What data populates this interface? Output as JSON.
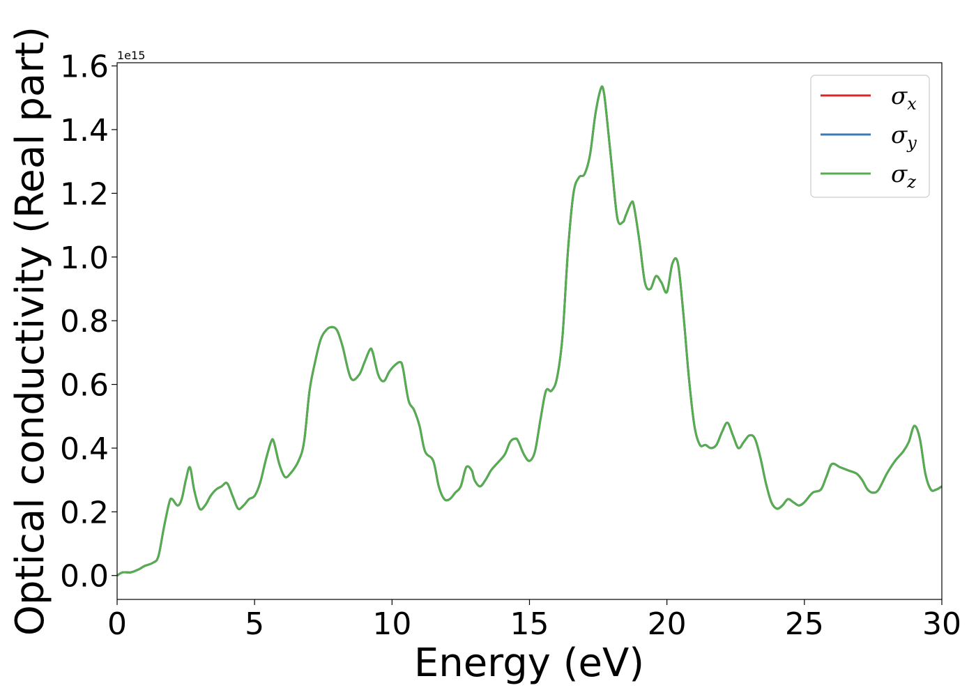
{
  "chart_data": {
    "type": "line",
    "xlabel": "Energy (eV)",
    "ylabel": "Optical conductivity (Real part)",
    "y_offset_label": "1e15",
    "y_scale": 1000000000000000.0,
    "xlim": [
      0,
      30
    ],
    "ylim": [
      -0.075,
      1.61
    ],
    "xticks": [
      0,
      5,
      10,
      15,
      20,
      25,
      30
    ],
    "yticks": [
      0.0,
      0.2,
      0.4,
      0.6,
      0.8,
      1.0,
      1.2,
      1.4,
      1.6
    ],
    "grid": false,
    "legend_position": "top-right",
    "colors": {
      "sigma_x": "#d62728",
      "sigma_y": "#3a7ab5",
      "sigma_z": "#55ad4f"
    },
    "x": [
      0,
      0.2,
      0.5,
      0.8,
      1.0,
      1.3,
      1.5,
      1.7,
      1.9,
      2.0,
      2.2,
      2.35,
      2.5,
      2.65,
      2.8,
      3.0,
      3.2,
      3.4,
      3.6,
      3.8,
      4.0,
      4.2,
      4.4,
      4.6,
      4.8,
      5.0,
      5.2,
      5.4,
      5.6,
      5.7,
      5.9,
      6.1,
      6.3,
      6.6,
      6.8,
      7.0,
      7.2,
      7.4,
      7.6,
      7.8,
      8.0,
      8.2,
      8.5,
      8.8,
      9.0,
      9.2,
      9.3,
      9.5,
      9.7,
      9.9,
      10.1,
      10.3,
      10.4,
      10.6,
      10.8,
      11.0,
      11.2,
      11.5,
      11.7,
      11.9,
      12.1,
      12.3,
      12.5,
      12.7,
      12.9,
      13.0,
      13.2,
      13.4,
      13.6,
      13.8,
      14.1,
      14.3,
      14.5,
      14.6,
      14.8,
      15.0,
      15.2,
      15.4,
      15.6,
      15.8,
      16.0,
      16.2,
      16.4,
      16.6,
      16.8,
      17.0,
      17.2,
      17.4,
      17.6,
      17.7,
      17.8,
      18.0,
      18.2,
      18.4,
      18.5,
      18.7,
      18.8,
      19.0,
      19.2,
      19.4,
      19.6,
      19.8,
      20.0,
      20.2,
      20.4,
      20.6,
      20.8,
      21.0,
      21.2,
      21.4,
      21.6,
      21.8,
      22.0,
      22.2,
      22.4,
      22.6,
      22.8,
      23.0,
      23.2,
      23.4,
      23.6,
      23.8,
      24.0,
      24.2,
      24.4,
      24.6,
      24.8,
      25.0,
      25.3,
      25.6,
      25.8,
      26.0,
      26.3,
      26.6,
      26.9,
      27.1,
      27.3,
      27.5,
      27.7,
      28.0,
      28.3,
      28.6,
      28.8,
      29.0,
      29.2,
      29.4,
      29.6,
      29.8,
      30.0
    ],
    "series": [
      {
        "name": "σx",
        "values": [
          0.0,
          0.01,
          0.01,
          0.02,
          0.03,
          0.04,
          0.06,
          0.15,
          0.23,
          0.24,
          0.22,
          0.24,
          0.3,
          0.34,
          0.27,
          0.21,
          0.22,
          0.25,
          0.27,
          0.28,
          0.29,
          0.25,
          0.21,
          0.22,
          0.24,
          0.25,
          0.29,
          0.36,
          0.42,
          0.42,
          0.35,
          0.31,
          0.32,
          0.36,
          0.42,
          0.58,
          0.67,
          0.74,
          0.77,
          0.78,
          0.77,
          0.72,
          0.62,
          0.63,
          0.67,
          0.71,
          0.7,
          0.63,
          0.61,
          0.64,
          0.66,
          0.67,
          0.65,
          0.55,
          0.52,
          0.47,
          0.39,
          0.36,
          0.28,
          0.24,
          0.24,
          0.26,
          0.28,
          0.34,
          0.33,
          0.3,
          0.28,
          0.3,
          0.33,
          0.35,
          0.38,
          0.42,
          0.43,
          0.42,
          0.38,
          0.36,
          0.39,
          0.49,
          0.58,
          0.58,
          0.62,
          0.75,
          1.02,
          1.2,
          1.25,
          1.26,
          1.32,
          1.45,
          1.53,
          1.52,
          1.45,
          1.28,
          1.12,
          1.11,
          1.13,
          1.17,
          1.16,
          1.05,
          0.92,
          0.9,
          0.94,
          0.92,
          0.89,
          0.98,
          0.98,
          0.82,
          0.62,
          0.47,
          0.41,
          0.41,
          0.4,
          0.41,
          0.45,
          0.48,
          0.44,
          0.4,
          0.42,
          0.44,
          0.43,
          0.37,
          0.29,
          0.23,
          0.21,
          0.22,
          0.24,
          0.23,
          0.22,
          0.23,
          0.26,
          0.27,
          0.31,
          0.35,
          0.34,
          0.33,
          0.32,
          0.3,
          0.27,
          0.26,
          0.27,
          0.32,
          0.36,
          0.39,
          0.42,
          0.47,
          0.43,
          0.32,
          0.27,
          0.27,
          0.28
        ]
      },
      {
        "name": "σy",
        "values": [
          0.0,
          0.01,
          0.01,
          0.02,
          0.03,
          0.04,
          0.06,
          0.15,
          0.23,
          0.24,
          0.22,
          0.24,
          0.3,
          0.34,
          0.27,
          0.21,
          0.22,
          0.25,
          0.27,
          0.28,
          0.29,
          0.25,
          0.21,
          0.22,
          0.24,
          0.25,
          0.29,
          0.36,
          0.42,
          0.42,
          0.35,
          0.31,
          0.32,
          0.36,
          0.42,
          0.58,
          0.67,
          0.74,
          0.77,
          0.78,
          0.77,
          0.72,
          0.62,
          0.63,
          0.67,
          0.71,
          0.7,
          0.63,
          0.61,
          0.64,
          0.66,
          0.67,
          0.65,
          0.55,
          0.52,
          0.47,
          0.39,
          0.36,
          0.28,
          0.24,
          0.24,
          0.26,
          0.28,
          0.34,
          0.33,
          0.3,
          0.28,
          0.3,
          0.33,
          0.35,
          0.38,
          0.42,
          0.43,
          0.42,
          0.38,
          0.36,
          0.39,
          0.49,
          0.58,
          0.58,
          0.62,
          0.75,
          1.02,
          1.2,
          1.25,
          1.26,
          1.32,
          1.45,
          1.53,
          1.52,
          1.45,
          1.28,
          1.12,
          1.11,
          1.13,
          1.17,
          1.16,
          1.05,
          0.92,
          0.9,
          0.94,
          0.92,
          0.89,
          0.98,
          0.98,
          0.82,
          0.62,
          0.47,
          0.41,
          0.41,
          0.4,
          0.41,
          0.45,
          0.48,
          0.44,
          0.4,
          0.42,
          0.44,
          0.43,
          0.37,
          0.29,
          0.23,
          0.21,
          0.22,
          0.24,
          0.23,
          0.22,
          0.23,
          0.26,
          0.27,
          0.31,
          0.35,
          0.34,
          0.33,
          0.32,
          0.3,
          0.27,
          0.26,
          0.27,
          0.32,
          0.36,
          0.39,
          0.42,
          0.47,
          0.43,
          0.32,
          0.27,
          0.27,
          0.28
        ]
      },
      {
        "name": "σz",
        "values": [
          0.0,
          0.01,
          0.01,
          0.02,
          0.03,
          0.04,
          0.06,
          0.15,
          0.23,
          0.24,
          0.22,
          0.24,
          0.3,
          0.34,
          0.27,
          0.21,
          0.22,
          0.25,
          0.27,
          0.28,
          0.29,
          0.25,
          0.21,
          0.22,
          0.24,
          0.25,
          0.29,
          0.36,
          0.42,
          0.42,
          0.35,
          0.31,
          0.32,
          0.36,
          0.42,
          0.58,
          0.67,
          0.74,
          0.77,
          0.78,
          0.77,
          0.72,
          0.62,
          0.63,
          0.67,
          0.71,
          0.7,
          0.63,
          0.61,
          0.64,
          0.66,
          0.67,
          0.65,
          0.55,
          0.52,
          0.47,
          0.39,
          0.36,
          0.28,
          0.24,
          0.24,
          0.26,
          0.28,
          0.34,
          0.33,
          0.3,
          0.28,
          0.3,
          0.33,
          0.35,
          0.38,
          0.42,
          0.43,
          0.42,
          0.38,
          0.36,
          0.39,
          0.49,
          0.58,
          0.58,
          0.62,
          0.75,
          1.02,
          1.2,
          1.25,
          1.26,
          1.32,
          1.45,
          1.53,
          1.52,
          1.45,
          1.28,
          1.12,
          1.11,
          1.13,
          1.17,
          1.16,
          1.05,
          0.92,
          0.9,
          0.94,
          0.92,
          0.89,
          0.98,
          0.98,
          0.82,
          0.62,
          0.47,
          0.41,
          0.41,
          0.4,
          0.41,
          0.45,
          0.48,
          0.44,
          0.4,
          0.42,
          0.44,
          0.43,
          0.37,
          0.29,
          0.23,
          0.21,
          0.22,
          0.24,
          0.23,
          0.22,
          0.23,
          0.26,
          0.27,
          0.31,
          0.35,
          0.34,
          0.33,
          0.32,
          0.3,
          0.27,
          0.26,
          0.27,
          0.32,
          0.36,
          0.39,
          0.42,
          0.47,
          0.43,
          0.32,
          0.27,
          0.27,
          0.28
        ]
      }
    ],
    "legend": [
      {
        "key": "sigma_x",
        "symbol": "σ",
        "sub": "x"
      },
      {
        "key": "sigma_y",
        "symbol": "σ",
        "sub": "y"
      },
      {
        "key": "sigma_z",
        "symbol": "σ",
        "sub": "z"
      }
    ]
  }
}
